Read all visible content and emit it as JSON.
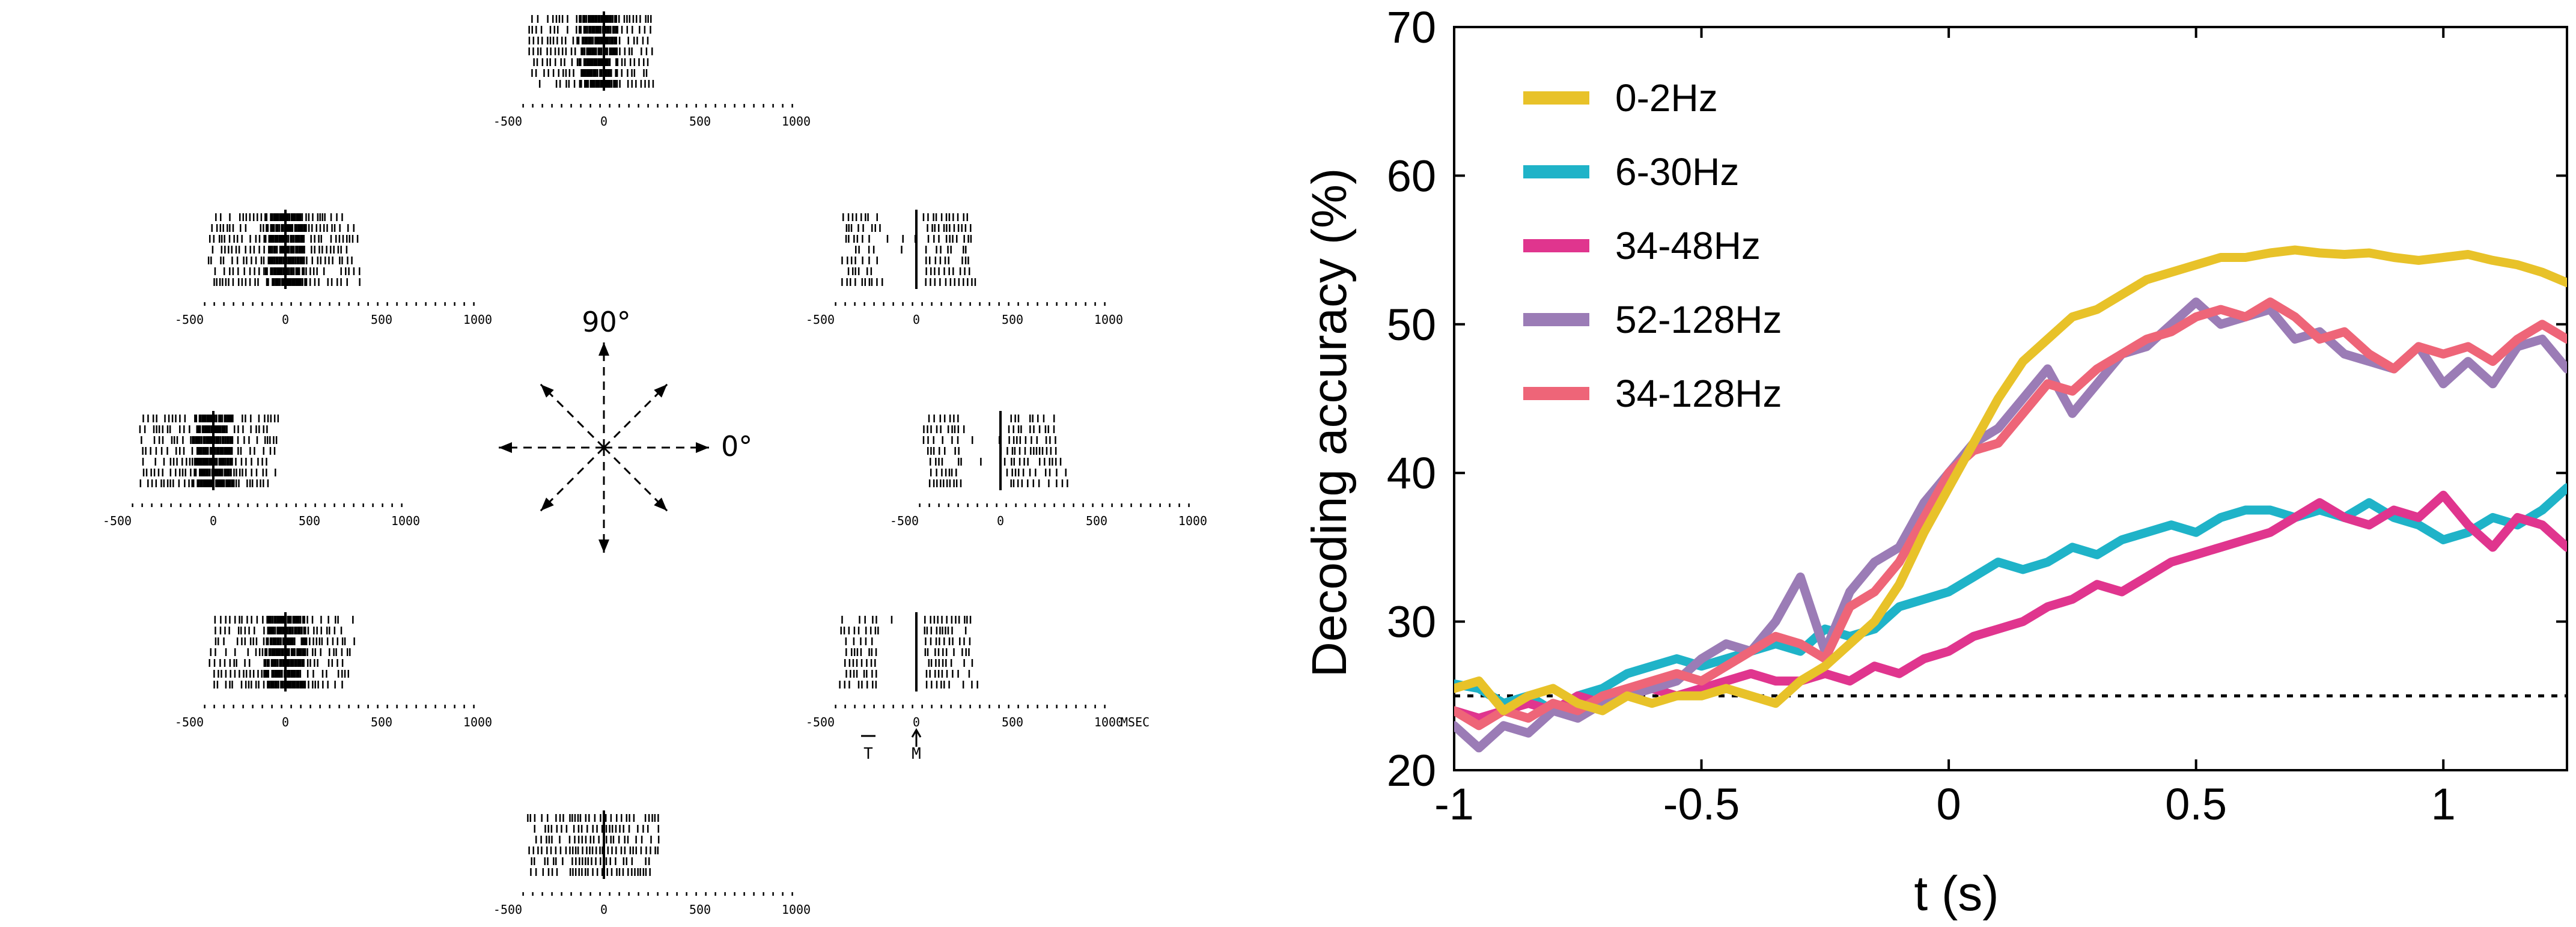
{
  "raster_panel": {
    "direction_label": "90°",
    "zero_label": "0°",
    "time_ticks": [
      "-500",
      "0",
      "500",
      "1000"
    ],
    "unit_label": "MSEC",
    "marker_T": "T",
    "marker_M": "M",
    "rasters": [
      {
        "name": "raster-90deg"
      },
      {
        "name": "raster-135deg"
      },
      {
        "name": "raster-45deg"
      },
      {
        "name": "raster-180deg"
      },
      {
        "name": "raster-0deg"
      },
      {
        "name": "raster-225deg"
      },
      {
        "name": "raster-315deg"
      },
      {
        "name": "raster-270deg"
      }
    ]
  },
  "chart_data": {
    "type": "line",
    "title": "",
    "xlabel": "t (s)",
    "ylabel": "Decoding accuracy (%)",
    "xlim": [
      -1,
      1.25
    ],
    "ylim": [
      20,
      70
    ],
    "xticks": [
      -1,
      -0.5,
      0,
      0.5,
      1
    ],
    "xtick_labels": [
      "-1",
      "-0.5",
      "0",
      "0.5",
      "1"
    ],
    "yticks": [
      20,
      30,
      40,
      50,
      60,
      70
    ],
    "ytick_labels": [
      "20",
      "30",
      "40",
      "50",
      "60",
      "70"
    ],
    "grid": false,
    "legend_position": "top-left",
    "chance_level": 25,
    "series": [
      {
        "name": "0-2Hz",
        "color": "#E8C229",
        "x": [
          -1,
          -0.95,
          -0.9,
          -0.85,
          -0.8,
          -0.75,
          -0.7,
          -0.65,
          -0.6,
          -0.55,
          -0.5,
          -0.45,
          -0.4,
          -0.35,
          -0.3,
          -0.25,
          -0.2,
          -0.15,
          -0.1,
          -0.05,
          0,
          0.05,
          0.1,
          0.15,
          0.2,
          0.25,
          0.3,
          0.35,
          0.4,
          0.45,
          0.5,
          0.55,
          0.6,
          0.65,
          0.7,
          0.75,
          0.8,
          0.85,
          0.9,
          0.95,
          1,
          1.05,
          1.1,
          1.15,
          1.2,
          1.25
        ],
        "y": [
          25.5,
          26,
          24,
          25,
          25.5,
          24.5,
          24,
          25,
          24.5,
          25,
          25,
          25.5,
          25,
          24.5,
          26,
          27,
          28.5,
          30,
          32.5,
          36,
          39,
          42,
          45,
          47.5,
          49,
          50.5,
          51,
          52,
          53,
          53.5,
          54,
          54.5,
          54.5,
          54.8,
          55,
          54.8,
          54.7,
          54.8,
          54.5,
          54.3,
          54.5,
          54.7,
          54.3,
          54,
          53.5,
          52.8
        ]
      },
      {
        "name": "6-30Hz",
        "color": "#1FB3C8",
        "x": [
          -1,
          -0.95,
          -0.9,
          -0.85,
          -0.8,
          -0.75,
          -0.7,
          -0.65,
          -0.6,
          -0.55,
          -0.5,
          -0.45,
          -0.4,
          -0.35,
          -0.3,
          -0.25,
          -0.2,
          -0.15,
          -0.1,
          -0.05,
          0,
          0.05,
          0.1,
          0.15,
          0.2,
          0.25,
          0.3,
          0.35,
          0.4,
          0.45,
          0.5,
          0.55,
          0.6,
          0.65,
          0.7,
          0.75,
          0.8,
          0.85,
          0.9,
          0.95,
          1,
          1.05,
          1.1,
          1.15,
          1.2,
          1.25
        ],
        "y": [
          25.8,
          25.5,
          24.5,
          25,
          24,
          25,
          25.5,
          26.5,
          27,
          27.5,
          27,
          27.5,
          28,
          28.5,
          28,
          29.5,
          29,
          29.5,
          31,
          31.5,
          32,
          33,
          34,
          33.5,
          34,
          35,
          34.5,
          35.5,
          36,
          36.5,
          36,
          37,
          37.5,
          37.5,
          37,
          37.5,
          37,
          38,
          37,
          36.5,
          35.5,
          36,
          37,
          36.5,
          37.5,
          39
        ]
      },
      {
        "name": "34-48Hz",
        "color": "#E0358E",
        "x": [
          -1,
          -0.95,
          -0.9,
          -0.85,
          -0.8,
          -0.75,
          -0.7,
          -0.65,
          -0.6,
          -0.55,
          -0.5,
          -0.45,
          -0.4,
          -0.35,
          -0.3,
          -0.25,
          -0.2,
          -0.15,
          -0.1,
          -0.05,
          0,
          0.05,
          0.1,
          0.15,
          0.2,
          0.25,
          0.3,
          0.35,
          0.4,
          0.45,
          0.5,
          0.55,
          0.6,
          0.65,
          0.7,
          0.75,
          0.8,
          0.85,
          0.9,
          0.95,
          1,
          1.05,
          1.1,
          1.15,
          1.2,
          1.25
        ],
        "y": [
          24,
          23.5,
          24,
          24.5,
          24,
          25,
          24.5,
          25,
          25.5,
          25,
          25.5,
          26,
          26.5,
          26,
          26,
          26.5,
          26,
          27,
          26.5,
          27.5,
          28,
          29,
          29.5,
          30,
          31,
          31.5,
          32.5,
          32,
          33,
          34,
          34.5,
          35,
          35.5,
          36,
          37,
          38,
          37,
          36.5,
          37.5,
          37,
          38.5,
          36.5,
          35,
          37,
          36.5,
          35
        ]
      },
      {
        "name": "52-128Hz",
        "color": "#9B7CB6",
        "x": [
          -1,
          -0.95,
          -0.9,
          -0.85,
          -0.8,
          -0.75,
          -0.7,
          -0.65,
          -0.6,
          -0.55,
          -0.5,
          -0.45,
          -0.4,
          -0.35,
          -0.3,
          -0.25,
          -0.2,
          -0.15,
          -0.1,
          -0.05,
          0,
          0.05,
          0.1,
          0.15,
          0.2,
          0.25,
          0.3,
          0.35,
          0.4,
          0.45,
          0.5,
          0.55,
          0.6,
          0.65,
          0.7,
          0.75,
          0.8,
          0.85,
          0.9,
          0.95,
          1,
          1.05,
          1.1,
          1.15,
          1.2,
          1.25
        ],
        "y": [
          23,
          21.5,
          23,
          22.5,
          24,
          23.5,
          24.5,
          25,
          25.5,
          26,
          27.5,
          28.5,
          28,
          30,
          33,
          28,
          32,
          34,
          35,
          38,
          40,
          42,
          43,
          45,
          47,
          44,
          46,
          48,
          48.5,
          50,
          51.5,
          50,
          50.5,
          51,
          49,
          49.5,
          48,
          47.5,
          47,
          48.5,
          46,
          47.5,
          46,
          48.5,
          49,
          47
        ]
      },
      {
        "name": "34-128Hz",
        "color": "#EE6578",
        "x": [
          -1,
          -0.95,
          -0.9,
          -0.85,
          -0.8,
          -0.75,
          -0.7,
          -0.65,
          -0.6,
          -0.55,
          -0.5,
          -0.45,
          -0.4,
          -0.35,
          -0.3,
          -0.25,
          -0.2,
          -0.15,
          -0.1,
          -0.05,
          0,
          0.05,
          0.1,
          0.15,
          0.2,
          0.25,
          0.3,
          0.35,
          0.4,
          0.45,
          0.5,
          0.55,
          0.6,
          0.65,
          0.7,
          0.75,
          0.8,
          0.85,
          0.9,
          0.95,
          1,
          1.05,
          1.1,
          1.15,
          1.2,
          1.25
        ],
        "y": [
          24,
          23,
          24,
          23.5,
          24.5,
          24,
          25,
          25.5,
          26,
          26.5,
          26,
          27,
          28,
          29,
          28.5,
          27.5,
          31,
          32,
          34,
          37,
          40,
          41.5,
          42,
          44,
          46,
          45.5,
          47,
          48,
          49,
          49.5,
          50.5,
          51,
          50.5,
          51.5,
          50.5,
          49,
          49.5,
          48,
          47,
          48.5,
          48,
          48.5,
          47.5,
          49,
          50,
          49
        ]
      }
    ]
  }
}
